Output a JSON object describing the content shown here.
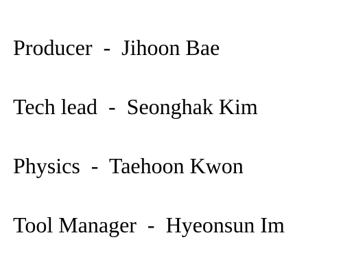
{
  "credits": [
    {
      "role": "Producer",
      "separator": "  -  ",
      "name": "Jihoon Bae"
    },
    {
      "role": "Tech lead",
      "separator": "  -  ",
      "name": "Seonghak Kim"
    },
    {
      "role": "Physics",
      "separator": "  -  ",
      "name": "Taehoon Kwon"
    },
    {
      "role": "Tool Manager",
      "separator": "  -  ",
      "name": "Hyeonsun Im"
    }
  ],
  "colors": {
    "background": "#ffffff",
    "text": "#000000"
  }
}
